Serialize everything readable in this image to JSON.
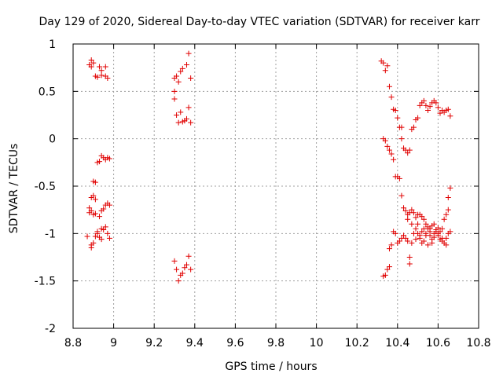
{
  "chart_data": {
    "type": "scatter",
    "title": "Day 129 of 2020, Sidereal Day-to-day VTEC variation (SDTVAR) for receiver karr",
    "xlabel": "GPS time / hours",
    "ylabel": "SDTVAR / TECUs",
    "xlim": [
      8.8,
      10.8
    ],
    "ylim": [
      -2,
      1
    ],
    "x_ticks": [
      "8.8",
      "9",
      "9.2",
      "9.4",
      "9.6",
      "9.8",
      "10",
      "10.2",
      "10.4",
      "10.6",
      "10.8"
    ],
    "y_ticks": [
      "-2",
      "-1.5",
      "-1",
      "-0.5",
      "0",
      "0.5",
      "1"
    ],
    "grid": true,
    "marker": "+",
    "color": "#e00000",
    "series": [
      {
        "name": "SDTVAR",
        "points": [
          [
            8.88,
            0.78
          ],
          [
            8.89,
            0.83
          ],
          [
            8.89,
            0.76
          ],
          [
            8.9,
            0.8
          ],
          [
            8.91,
            0.66
          ],
          [
            8.92,
            0.65
          ],
          [
            8.93,
            0.76
          ],
          [
            8.94,
            0.72
          ],
          [
            8.94,
            0.67
          ],
          [
            8.96,
            0.66
          ],
          [
            8.96,
            0.76
          ],
          [
            8.97,
            0.64
          ],
          [
            8.92,
            -0.25
          ],
          [
            8.93,
            -0.24
          ],
          [
            8.94,
            -0.18
          ],
          [
            8.95,
            -0.2
          ],
          [
            8.96,
            -0.22
          ],
          [
            8.97,
            -0.2
          ],
          [
            8.98,
            -0.21
          ],
          [
            8.9,
            -0.45
          ],
          [
            8.91,
            -0.46
          ],
          [
            8.9,
            -0.6
          ],
          [
            8.89,
            -0.62
          ],
          [
            8.91,
            -0.64
          ],
          [
            8.88,
            -0.73
          ],
          [
            8.89,
            -0.76
          ],
          [
            8.9,
            -0.8
          ],
          [
            8.88,
            -0.78
          ],
          [
            8.91,
            -0.79
          ],
          [
            8.93,
            -0.82
          ],
          [
            8.94,
            -0.76
          ],
          [
            8.95,
            -0.74
          ],
          [
            8.96,
            -0.7
          ],
          [
            8.97,
            -0.68
          ],
          [
            8.98,
            -0.7
          ],
          [
            8.87,
            -1.03
          ],
          [
            8.89,
            -1.15
          ],
          [
            8.9,
            -1.1
          ],
          [
            8.89,
            -1.12
          ],
          [
            8.91,
            -1.03
          ],
          [
            8.92,
            -1.0
          ],
          [
            8.93,
            -1.04
          ],
          [
            8.94,
            -1.06
          ],
          [
            8.95,
            -0.96
          ],
          [
            8.96,
            -0.93
          ],
          [
            8.97,
            -1.0
          ],
          [
            8.98,
            -1.05
          ],
          [
            8.94,
            -0.95
          ],
          [
            8.92,
            -0.98
          ],
          [
            9.3,
            0.64
          ],
          [
            9.31,
            0.66
          ],
          [
            9.32,
            0.6
          ],
          [
            9.33,
            0.71
          ],
          [
            9.34,
            0.74
          ],
          [
            9.36,
            0.78
          ],
          [
            9.37,
            0.9
          ],
          [
            9.38,
            0.64
          ],
          [
            9.3,
            0.5
          ],
          [
            9.3,
            0.42
          ],
          [
            9.31,
            0.25
          ],
          [
            9.33,
            0.28
          ],
          [
            9.32,
            0.17
          ],
          [
            9.34,
            0.18
          ],
          [
            9.35,
            0.19
          ],
          [
            9.36,
            0.21
          ],
          [
            9.37,
            0.33
          ],
          [
            9.38,
            0.17
          ],
          [
            9.3,
            -1.29
          ],
          [
            9.31,
            -1.38
          ],
          [
            9.32,
            -1.5
          ],
          [
            9.33,
            -1.44
          ],
          [
            9.34,
            -1.42
          ],
          [
            9.35,
            -1.36
          ],
          [
            9.36,
            -1.33
          ],
          [
            9.37,
            -1.24
          ],
          [
            9.38,
            -1.38
          ],
          [
            10.32,
            0.82
          ],
          [
            10.33,
            0.8
          ],
          [
            10.34,
            0.72
          ],
          [
            10.35,
            0.77
          ],
          [
            10.36,
            0.55
          ],
          [
            10.37,
            0.44
          ],
          [
            10.38,
            0.31
          ],
          [
            10.39,
            0.3
          ],
          [
            10.4,
            0.22
          ],
          [
            10.41,
            0.12
          ],
          [
            10.42,
            0.12
          ],
          [
            10.33,
            0.0
          ],
          [
            10.34,
            -0.02
          ],
          [
            10.35,
            -0.08
          ],
          [
            10.36,
            -0.12
          ],
          [
            10.37,
            -0.16
          ],
          [
            10.38,
            -0.22
          ],
          [
            10.39,
            -0.4
          ],
          [
            10.4,
            -0.4
          ],
          [
            10.41,
            -0.42
          ],
          [
            10.42,
            0.0
          ],
          [
            10.43,
            -0.1
          ],
          [
            10.44,
            -0.12
          ],
          [
            10.45,
            -0.15
          ],
          [
            10.46,
            -0.12
          ],
          [
            10.47,
            0.1
          ],
          [
            10.48,
            0.12
          ],
          [
            10.49,
            0.2
          ],
          [
            10.5,
            0.22
          ],
          [
            10.51,
            0.35
          ],
          [
            10.52,
            0.38
          ],
          [
            10.53,
            0.4
          ],
          [
            10.54,
            0.35
          ],
          [
            10.55,
            0.3
          ],
          [
            10.56,
            0.34
          ],
          [
            10.57,
            0.38
          ],
          [
            10.58,
            0.4
          ],
          [
            10.59,
            0.38
          ],
          [
            10.6,
            0.33
          ],
          [
            10.61,
            0.27
          ],
          [
            10.62,
            0.3
          ],
          [
            10.63,
            0.28
          ],
          [
            10.64,
            0.3
          ],
          [
            10.65,
            0.31
          ],
          [
            10.66,
            0.24
          ],
          [
            10.33,
            -1.45
          ],
          [
            10.34,
            -1.44
          ],
          [
            10.35,
            -1.38
          ],
          [
            10.36,
            -1.35
          ],
          [
            10.36,
            -1.16
          ],
          [
            10.37,
            -1.12
          ],
          [
            10.38,
            -0.98
          ],
          [
            10.39,
            -1.0
          ],
          [
            10.4,
            -1.1
          ],
          [
            10.41,
            -1.08
          ],
          [
            10.42,
            -1.05
          ],
          [
            10.43,
            -1.02
          ],
          [
            10.44,
            -1.05
          ],
          [
            10.45,
            -1.08
          ],
          [
            10.46,
            -1.32
          ],
          [
            10.46,
            -1.25
          ],
          [
            10.47,
            -1.1
          ],
          [
            10.48,
            -1.0
          ],
          [
            10.49,
            -0.95
          ],
          [
            10.5,
            -1.0
          ],
          [
            10.51,
            -1.05
          ],
          [
            10.52,
            -1.1
          ],
          [
            10.53,
            -1.08
          ],
          [
            10.54,
            -1.0
          ],
          [
            10.55,
            -0.95
          ],
          [
            10.56,
            -1.02
          ],
          [
            10.57,
            -1.1
          ],
          [
            10.58,
            -1.04
          ],
          [
            10.59,
            -0.98
          ],
          [
            10.6,
            -1.0
          ],
          [
            10.61,
            -1.06
          ],
          [
            10.62,
            -1.05
          ],
          [
            10.63,
            -1.1
          ],
          [
            10.64,
            -1.12
          ],
          [
            10.65,
            -1.0
          ],
          [
            10.66,
            -0.98
          ],
          [
            10.42,
            -0.6
          ],
          [
            10.43,
            -0.73
          ],
          [
            10.44,
            -0.76
          ],
          [
            10.45,
            -0.8
          ],
          [
            10.46,
            -0.78
          ],
          [
            10.47,
            -0.75
          ],
          [
            10.48,
            -0.78
          ],
          [
            10.49,
            -0.83
          ],
          [
            10.5,
            -0.8
          ],
          [
            10.51,
            -0.8
          ],
          [
            10.52,
            -0.82
          ],
          [
            10.53,
            -0.85
          ],
          [
            10.54,
            -0.9
          ],
          [
            10.55,
            -0.93
          ],
          [
            10.56,
            -0.95
          ],
          [
            10.57,
            -0.92
          ],
          [
            10.58,
            -0.9
          ],
          [
            10.59,
            -0.96
          ],
          [
            10.6,
            -0.94
          ],
          [
            10.61,
            -0.98
          ],
          [
            10.62,
            -0.95
          ],
          [
            10.63,
            -0.85
          ],
          [
            10.64,
            -0.8
          ],
          [
            10.65,
            -0.75
          ],
          [
            10.66,
            -0.52
          ],
          [
            10.65,
            -0.62
          ],
          [
            10.5,
            -0.9
          ],
          [
            10.52,
            -0.98
          ],
          [
            10.54,
            -1.02
          ],
          [
            10.56,
            -0.98
          ],
          [
            10.58,
            -1.0
          ],
          [
            10.6,
            -1.02
          ],
          [
            10.62,
            -1.08
          ],
          [
            10.64,
            -1.05
          ],
          [
            10.55,
            -1.12
          ],
          [
            10.57,
            -1.06
          ],
          [
            10.53,
            -0.95
          ],
          [
            10.51,
            -1.02
          ],
          [
            10.49,
            -1.06
          ],
          [
            10.47,
            -0.9
          ],
          [
            10.45,
            -0.85
          ]
        ]
      }
    ]
  }
}
